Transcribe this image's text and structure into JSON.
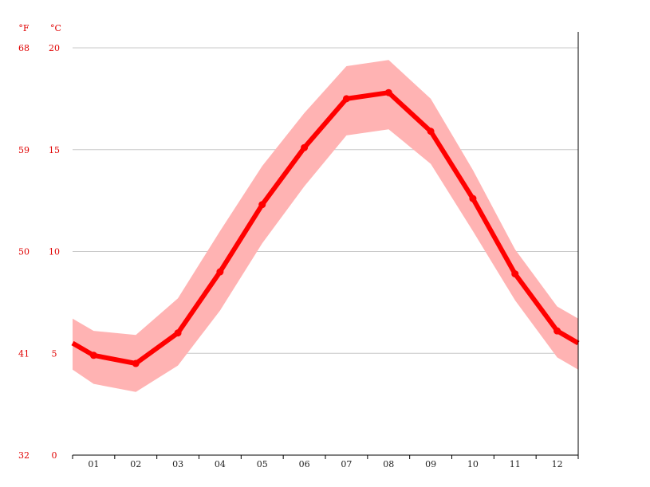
{
  "chart_data": {
    "type": "line",
    "title": "",
    "xlabel": "",
    "ylabel": "",
    "units": {
      "left": "°F",
      "right": "°C"
    },
    "categories": [
      "01",
      "02",
      "03",
      "04",
      "05",
      "06",
      "07",
      "08",
      "09",
      "10",
      "11",
      "12"
    ],
    "x_range": [
      0.5,
      12.5
    ],
    "ylim": [
      0,
      20
    ],
    "y_ticks_c": [
      0,
      5,
      10,
      15,
      20
    ],
    "y_ticks_f": [
      "32",
      "41",
      "50",
      "59",
      "68"
    ],
    "y_ticks_c_labels": [
      "0",
      "5",
      "10",
      "15",
      "20"
    ],
    "grid": true,
    "series": [
      {
        "kind": "line",
        "values": [
          4.9,
          4.5,
          6.0,
          9.0,
          12.3,
          15.1,
          17.5,
          17.8,
          15.9,
          12.6,
          8.9,
          6.1
        ],
        "start_value": 5.5,
        "end_value": 5.5,
        "color": "#ff0000"
      },
      {
        "kind": "band",
        "upper": [
          6.7,
          6.1,
          5.9,
          7.7,
          11.0,
          14.2,
          16.8,
          19.1,
          19.4,
          17.5,
          14.0,
          10.1,
          7.3,
          6.7
        ],
        "lower": [
          4.2,
          3.5,
          3.1,
          4.4,
          7.1,
          10.4,
          13.2,
          15.7,
          16.0,
          14.3,
          11.0,
          7.6,
          4.8,
          4.2
        ],
        "x": [
          0.5,
          1,
          2,
          3,
          4,
          5,
          6,
          7,
          8,
          9,
          10,
          11,
          12,
          12.5
        ],
        "color": "#ffb3b3"
      }
    ]
  }
}
